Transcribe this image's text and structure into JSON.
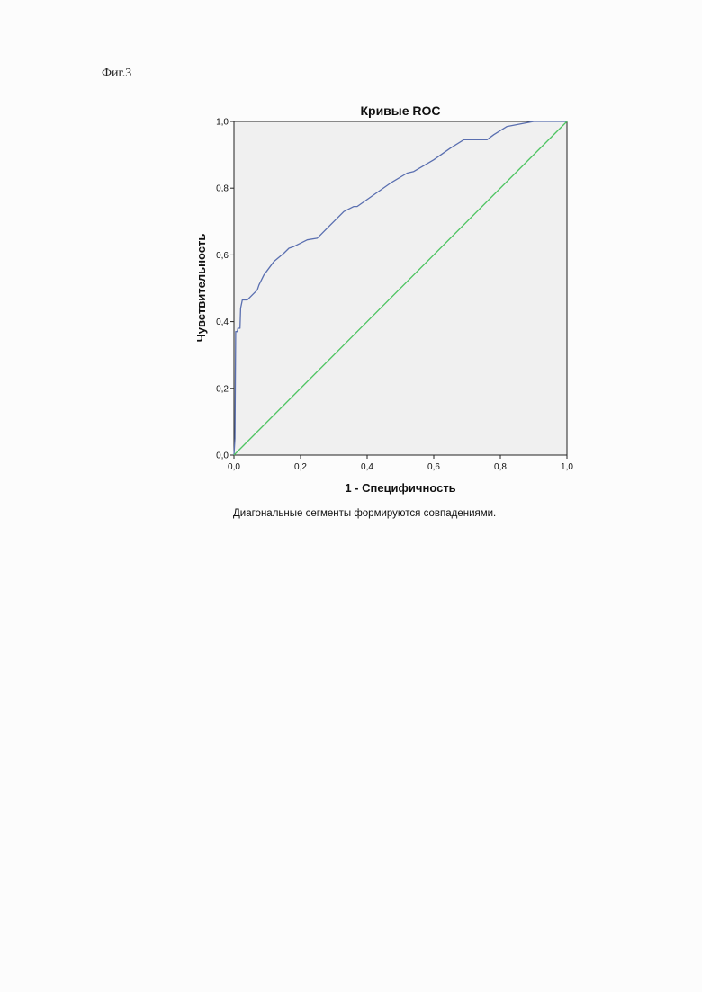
{
  "figure_label": "Фиг.3",
  "footnote": "Диагональные сегменты формируются совпадениями.",
  "chart_data": {
    "type": "line",
    "title": "Кривые ROC",
    "xlabel": "1 - Специфичность",
    "ylabel": "Чувствительность",
    "xlim": [
      0,
      1
    ],
    "ylim": [
      0,
      1
    ],
    "x_ticks": [
      "0,0",
      "0,2",
      "0,4",
      "0,6",
      "0,8",
      "1,0"
    ],
    "y_ticks": [
      "0,0",
      "0,2",
      "0,4",
      "0,6",
      "0,8",
      "1,0"
    ],
    "grid": false,
    "colors": {
      "curve": "#5a6fb0",
      "reference": "#4ec462",
      "plot_bg": "#f0f0f0"
    },
    "series": [
      {
        "values": [
          [
            0.0,
            0.0
          ],
          [
            0.003,
            0.05
          ],
          [
            0.005,
            0.37
          ],
          [
            0.01,
            0.37
          ],
          [
            0.012,
            0.38
          ],
          [
            0.018,
            0.38
          ],
          [
            0.02,
            0.44
          ],
          [
            0.025,
            0.465
          ],
          [
            0.04,
            0.465
          ],
          [
            0.05,
            0.475
          ],
          [
            0.07,
            0.495
          ],
          [
            0.075,
            0.51
          ],
          [
            0.09,
            0.54
          ],
          [
            0.12,
            0.58
          ],
          [
            0.15,
            0.605
          ],
          [
            0.165,
            0.62
          ],
          [
            0.18,
            0.625
          ],
          [
            0.22,
            0.645
          ],
          [
            0.25,
            0.65
          ],
          [
            0.27,
            0.67
          ],
          [
            0.3,
            0.7
          ],
          [
            0.33,
            0.73
          ],
          [
            0.36,
            0.745
          ],
          [
            0.37,
            0.745
          ],
          [
            0.42,
            0.78
          ],
          [
            0.47,
            0.815
          ],
          [
            0.52,
            0.845
          ],
          [
            0.54,
            0.85
          ],
          [
            0.6,
            0.885
          ],
          [
            0.65,
            0.92
          ],
          [
            0.69,
            0.945
          ],
          [
            0.76,
            0.945
          ],
          [
            0.78,
            0.96
          ],
          [
            0.82,
            0.985
          ],
          [
            0.9,
            1.0
          ],
          [
            1.0,
            1.0
          ]
        ]
      },
      {
        "values": [
          [
            0,
            0
          ],
          [
            1,
            1
          ]
        ]
      }
    ]
  }
}
